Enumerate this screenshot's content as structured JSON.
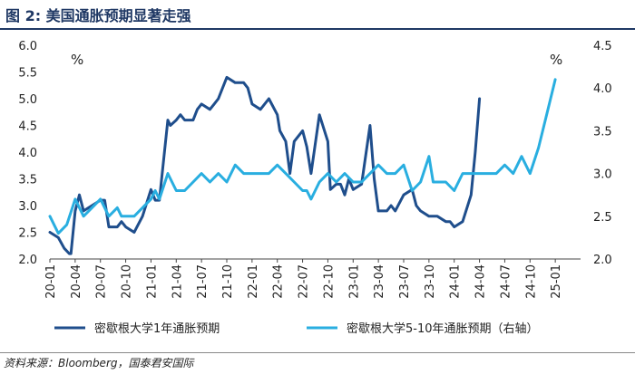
{
  "title": "图 2:  美国通胀预期显著走强",
  "source": "资料来源：Bloomberg，国泰君安国际",
  "chart_data": {
    "type": "line",
    "left_unit": "%",
    "right_unit": "%",
    "y_left": {
      "min": 2.0,
      "max": 6.0,
      "ticks": [
        "2.0",
        "2.5",
        "3.0",
        "3.5",
        "4.0",
        "4.5",
        "5.0",
        "5.5",
        "6.0"
      ]
    },
    "y_right": {
      "min": 2.0,
      "max": 4.5,
      "ticks": [
        "2.0",
        "2.5",
        "3.0",
        "3.5",
        "4.0",
        "4.5"
      ]
    },
    "x_range": [
      0,
      63
    ],
    "x_ticks": [
      {
        "x": 0,
        "label": "20-01"
      },
      {
        "x": 3,
        "label": "20-04"
      },
      {
        "x": 6,
        "label": "20-07"
      },
      {
        "x": 9,
        "label": "20-10"
      },
      {
        "x": 12,
        "label": "21-01"
      },
      {
        "x": 15,
        "label": "21-04"
      },
      {
        "x": 18,
        "label": "21-07"
      },
      {
        "x": 21,
        "label": "21-10"
      },
      {
        "x": 24,
        "label": "22-01"
      },
      {
        "x": 27,
        "label": "22-04"
      },
      {
        "x": 30,
        "label": "22-07"
      },
      {
        "x": 33,
        "label": "22-10"
      },
      {
        "x": 36,
        "label": "23-01"
      },
      {
        "x": 39,
        "label": "23-04"
      },
      {
        "x": 42,
        "label": "23-07"
      },
      {
        "x": 45,
        "label": "23-10"
      },
      {
        "x": 48,
        "label": "24-01"
      },
      {
        "x": 51,
        "label": "24-04"
      },
      {
        "x": 54,
        "label": "24-07"
      },
      {
        "x": 57,
        "label": "24-10"
      },
      {
        "x": 60,
        "label": "25-01"
      }
    ],
    "series": [
      {
        "name": "密歇根大学1年通胀预期",
        "axis": "left",
        "color": "#1f4e8c",
        "points": [
          [
            0,
            2.5
          ],
          [
            1,
            2.4
          ],
          [
            1.7,
            2.2
          ],
          [
            2.3,
            2.1
          ],
          [
            2.5,
            2.1
          ],
          [
            3,
            2.9
          ],
          [
            3.5,
            3.2
          ],
          [
            4,
            2.9
          ],
          [
            5,
            3.0
          ],
          [
            6,
            3.1
          ],
          [
            6.5,
            3.1
          ],
          [
            7,
            2.6
          ],
          [
            8,
            2.6
          ],
          [
            8.5,
            2.7
          ],
          [
            9,
            2.6
          ],
          [
            10,
            2.5
          ],
          [
            11,
            2.8
          ],
          [
            12,
            3.3
          ],
          [
            12.5,
            3.1
          ],
          [
            13,
            3.1
          ],
          [
            14,
            4.6
          ],
          [
            14.3,
            4.5
          ],
          [
            15,
            4.6
          ],
          [
            15.5,
            4.7
          ],
          [
            16,
            4.6
          ],
          [
            17,
            4.6
          ],
          [
            17.5,
            4.8
          ],
          [
            18,
            4.9
          ],
          [
            19,
            4.8
          ],
          [
            19.5,
            4.9
          ],
          [
            20,
            5.0
          ],
          [
            21,
            5.4
          ],
          [
            22,
            5.3
          ],
          [
            23,
            5.3
          ],
          [
            23.5,
            5.2
          ],
          [
            24,
            4.9
          ],
          [
            25,
            4.8
          ],
          [
            26,
            5.0
          ],
          [
            27,
            4.7
          ],
          [
            27.3,
            4.4
          ],
          [
            28,
            4.2
          ],
          [
            28.5,
            3.6
          ],
          [
            29,
            4.2
          ],
          [
            30,
            4.4
          ],
          [
            30.5,
            4.1
          ],
          [
            31,
            3.6
          ],
          [
            32,
            4.7
          ],
          [
            33,
            4.2
          ],
          [
            33.3,
            3.3
          ],
          [
            34,
            3.4
          ],
          [
            34.5,
            3.4
          ],
          [
            35,
            3.2
          ],
          [
            35.5,
            3.5
          ],
          [
            36,
            3.3
          ],
          [
            37,
            3.4
          ],
          [
            38,
            4.5
          ],
          [
            38.5,
            3.5
          ],
          [
            39,
            2.9
          ],
          [
            40,
            2.9
          ],
          [
            40.5,
            3.0
          ],
          [
            41,
            2.9
          ],
          [
            42,
            3.2
          ],
          [
            43,
            3.3
          ],
          [
            43.5,
            3.0
          ],
          [
            44,
            2.9
          ],
          [
            45,
            2.8
          ],
          [
            46,
            2.8
          ],
          [
            47,
            2.7
          ],
          [
            47.5,
            2.7
          ],
          [
            48,
            2.6
          ],
          [
            49,
            2.7
          ],
          [
            50,
            3.2
          ],
          [
            50.5,
            4.0
          ],
          [
            51,
            5.0
          ]
        ]
      },
      {
        "name": "密歇根大学5-10年通胀预期（右轴）",
        "axis": "right",
        "color": "#29aee0",
        "points": [
          [
            0,
            2.5
          ],
          [
            1,
            2.3
          ],
          [
            2,
            2.4
          ],
          [
            3,
            2.7
          ],
          [
            4,
            2.5
          ],
          [
            5,
            2.6
          ],
          [
            6,
            2.7
          ],
          [
            7,
            2.5
          ],
          [
            8,
            2.6
          ],
          [
            8.5,
            2.5
          ],
          [
            9,
            2.5
          ],
          [
            10,
            2.5
          ],
          [
            11,
            2.6
          ],
          [
            12,
            2.7
          ],
          [
            12.5,
            2.8
          ],
          [
            13,
            2.7
          ],
          [
            14,
            3.0
          ],
          [
            15,
            2.8
          ],
          [
            16,
            2.8
          ],
          [
            17,
            2.9
          ],
          [
            18,
            3.0
          ],
          [
            19,
            2.9
          ],
          [
            20,
            3.0
          ],
          [
            21,
            2.9
          ],
          [
            22,
            3.1
          ],
          [
            23,
            3.0
          ],
          [
            24,
            3.0
          ],
          [
            25,
            3.0
          ],
          [
            26,
            3.0
          ],
          [
            27,
            3.1
          ],
          [
            28,
            3.0
          ],
          [
            29,
            2.9
          ],
          [
            30,
            2.8
          ],
          [
            30.5,
            2.8
          ],
          [
            31,
            2.7
          ],
          [
            32,
            2.9
          ],
          [
            33,
            3.0
          ],
          [
            34,
            2.9
          ],
          [
            35,
            3.0
          ],
          [
            36,
            2.9
          ],
          [
            37,
            2.9
          ],
          [
            38,
            3.0
          ],
          [
            39,
            3.1
          ],
          [
            40,
            3.0
          ],
          [
            41,
            3.0
          ],
          [
            42,
            3.1
          ],
          [
            43,
            2.8
          ],
          [
            44,
            2.9
          ],
          [
            45,
            3.2
          ],
          [
            45.5,
            2.9
          ],
          [
            46,
            2.9
          ],
          [
            47,
            2.9
          ],
          [
            48,
            2.8
          ],
          [
            49,
            3.0
          ],
          [
            50,
            3.0
          ],
          [
            51,
            3.0
          ],
          [
            52,
            3.0
          ],
          [
            53,
            3.0
          ],
          [
            54,
            3.1
          ],
          [
            55,
            3.0
          ],
          [
            56,
            3.2
          ],
          [
            57,
            3.0
          ],
          [
            58,
            3.3
          ],
          [
            59,
            3.7
          ],
          [
            60,
            4.1
          ]
        ]
      }
    ],
    "legend_position": "bottom",
    "grid": false
  }
}
